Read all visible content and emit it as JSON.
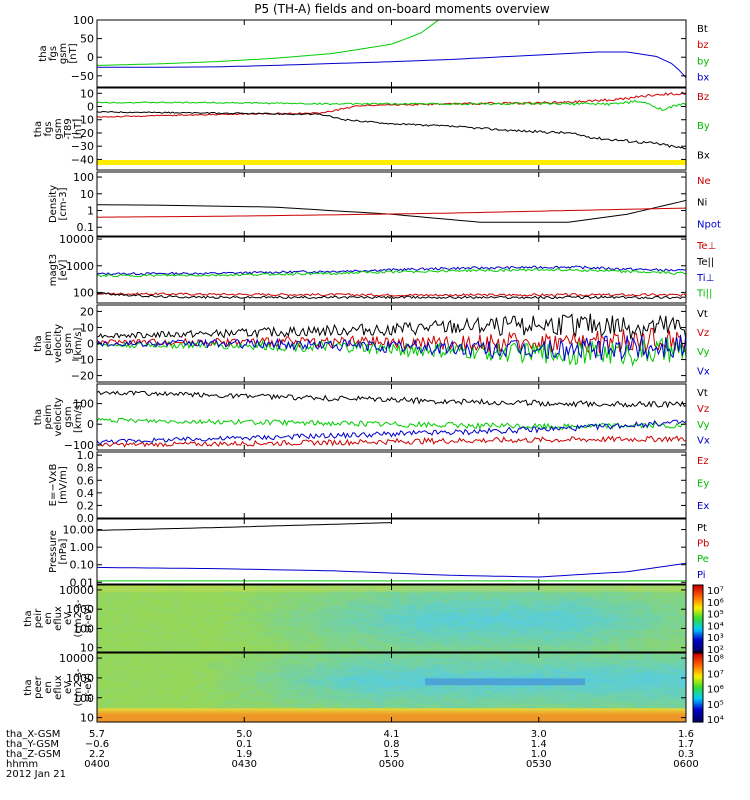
{
  "title": "P5 (TH-A) fields and on-board moments overview",
  "chart_data": {
    "type": "line",
    "title": "P5 (TH-A) fields and on-board moments overview",
    "x": {
      "start": "0400",
      "end": "0600",
      "ticks": [
        "0400",
        "0430",
        "0500",
        "0530",
        "0600"
      ]
    },
    "panels": [
      {
        "id": "fgs",
        "ylabel": [
          "tha",
          "fgs",
          "gsm",
          "[nT]"
        ],
        "yticks": [
          "100",
          "50",
          "0",
          "−50"
        ],
        "ylim": [
          -80,
          100
        ],
        "scale": "linear",
        "legend": [
          {
            "text": "Bt",
            "color": "#000000"
          },
          {
            "text": "bz",
            "color": "#cc0000"
          },
          {
            "text": "by",
            "color": "#00bb00"
          },
          {
            "text": "bx",
            "color": "#0000cc"
          }
        ],
        "series": [
          {
            "name": "by",
            "color": "#00cc00",
            "x": [
              0,
              0.1,
              0.2,
              0.3,
              0.4,
              0.5,
              0.55,
              0.58
            ],
            "y": [
              -22,
              -18,
              -12,
              -3,
              10,
              35,
              65,
              100
            ]
          },
          {
            "name": "bx",
            "color": "#0000cc",
            "x": [
              0,
              0.1,
              0.2,
              0.3,
              0.4,
              0.5,
              0.6,
              0.7,
              0.8,
              0.85,
              0.9,
              0.95,
              0.98,
              1
            ],
            "y": [
              -27,
              -27,
              -26,
              -22,
              -17,
              -12,
              -6,
              2,
              10,
              14,
              14,
              2,
              -20,
              -55
            ]
          }
        ]
      },
      {
        "id": "fgs_zoom",
        "ylabel": [
          "tha",
          "fgs",
          "gsm",
          "-T89",
          "[nT]"
        ],
        "yticks": [
          "10",
          "0",
          "−10",
          "−20",
          "−30",
          "−40"
        ],
        "ylim": [
          -48,
          14
        ],
        "scale": "linear",
        "legend": [
          {
            "text": "Bz",
            "color": "#cc0000"
          },
          {
            "text": "By",
            "color": "#00bb00"
          },
          {
            "text": "Bx",
            "color": "#000000"
          }
        ],
        "series": [
          {
            "name": "Bz",
            "color": "#cc0000",
            "x": [
              0,
              0.2,
              0.38,
              0.45,
              0.6,
              0.8,
              0.9,
              0.95,
              1
            ],
            "y": [
              -8,
              -6,
              -5,
              1,
              2,
              3,
              6,
              9,
              10
            ]
          },
          {
            "name": "By",
            "color": "#00cc00",
            "x": [
              0,
              0.2,
              0.4,
              0.6,
              0.8,
              0.88,
              0.92,
              0.96,
              1
            ],
            "y": [
              3,
              3,
              2,
              2,
              2,
              2,
              4,
              -2,
              2
            ]
          },
          {
            "name": "Bx",
            "color": "#000000",
            "x": [
              0,
              0.2,
              0.38,
              0.42,
              0.5,
              0.6,
              0.7,
              0.8,
              0.85,
              0.9,
              0.95,
              1
            ],
            "y": [
              -4,
              -5,
              -6,
              -10,
              -13,
              -15,
              -18,
              -20,
              -24,
              -26,
              -28,
              -32
            ]
          }
        ]
      },
      {
        "id": "density",
        "ylabel": [
          "Density",
          "[cm-3]"
        ],
        "yticks": [
          "100",
          "10",
          "1",
          "0.1"
        ],
        "ylim": [
          0.03,
          200
        ],
        "scale": "log",
        "legend": [
          {
            "text": "Ne",
            "color": "#cc0000"
          },
          {
            "text": "Ni",
            "color": "#000000"
          },
          {
            "text": "Npot",
            "color": "#0000cc"
          }
        ],
        "series": [
          {
            "name": "Ni",
            "color": "#000000",
            "x": [
              0,
              0.1,
              0.3,
              0.5,
              0.65,
              0.8,
              0.9,
              1
            ],
            "y": [
              2.2,
              2.1,
              1.6,
              0.6,
              0.2,
              0.2,
              0.6,
              4
            ]
          },
          {
            "name": "Ne",
            "color": "#cc0000",
            "x": [
              0,
              0.2,
              0.4,
              0.6,
              0.8,
              1
            ],
            "y": [
              0.4,
              0.45,
              0.55,
              0.7,
              1.0,
              1.4
            ]
          }
        ]
      },
      {
        "id": "temperature",
        "ylabel": [
          "magt3",
          "[eV]"
        ],
        "yticks": [
          "10000",
          "1000",
          "100"
        ],
        "ylim": [
          40,
          12000
        ],
        "scale": "log",
        "legend": [
          {
            "text": "Te⊥",
            "color": "#cc0000"
          },
          {
            "text": "Te||",
            "color": "#000000"
          },
          {
            "text": "Ti⊥",
            "color": "#0000cc"
          },
          {
            "text": "Ti||",
            "color": "#00bb00"
          }
        ],
        "series": [
          {
            "name": "Ti⊥",
            "color": "#0000cc",
            "x": [
              0,
              0.2,
              0.4,
              0.6,
              0.8,
              0.9,
              1
            ],
            "y": [
              500,
              520,
              620,
              800,
              900,
              750,
              650
            ]
          },
          {
            "name": "Ti||",
            "color": "#00cc00",
            "x": [
              0,
              0.2,
              0.4,
              0.6,
              0.8,
              0.9,
              1
            ],
            "y": [
              420,
              440,
              520,
              650,
              720,
              600,
              520
            ]
          },
          {
            "name": "Te⊥",
            "color": "#cc0000",
            "x": [
              0,
              0.2,
              0.5,
              0.8,
              1
            ],
            "y": [
              90,
              85,
              80,
              80,
              80
            ]
          },
          {
            "name": "Te||",
            "color": "#000000",
            "x": [
              0,
              0.05,
              0.1,
              0.2,
              0.5,
              0.8,
              1
            ],
            "y": [
              95,
              80,
              70,
              65,
              65,
              65,
              65
            ]
          }
        ]
      },
      {
        "id": "velocity_zoom",
        "ylabel": [
          "tha",
          "peim",
          "velocity",
          "gsm",
          "[km/s]"
        ],
        "yticks": [
          "20",
          "10",
          "0",
          "−10",
          "−20"
        ],
        "ylim": [
          -24,
          24
        ],
        "scale": "linear",
        "legend": [
          {
            "text": "Vt",
            "color": "#000000"
          },
          {
            "text": "Vz",
            "color": "#cc0000"
          },
          {
            "text": "Vy",
            "color": "#00bb00"
          },
          {
            "text": "Vx",
            "color": "#0000cc"
          }
        ],
        "series": [
          {
            "name": "Vt",
            "color": "#000000",
            "x": [
              0,
              0.2,
              0.4,
              0.6,
              0.8,
              1
            ],
            "y": [
              5,
              6,
              8,
              10,
              12,
              9
            ]
          },
          {
            "name": "Vz",
            "color": "#cc0000",
            "x": [
              0,
              0.2,
              0.4,
              0.6,
              0.8,
              1
            ],
            "y": [
              1,
              1,
              1,
              0,
              1,
              2
            ]
          },
          {
            "name": "Vy",
            "color": "#00cc00",
            "x": [
              0,
              0.2,
              0.4,
              0.6,
              0.8,
              1
            ],
            "y": [
              -1,
              -1,
              -2,
              -5,
              -6,
              -5
            ]
          },
          {
            "name": "Vx",
            "color": "#0000cc",
            "x": [
              0,
              0.2,
              0.4,
              0.6,
              0.8,
              1
            ],
            "y": [
              0,
              0,
              -1,
              -3,
              -4,
              -1
            ]
          }
        ]
      },
      {
        "id": "velocity",
        "ylabel": [
          "tha",
          "peim",
          "velocity",
          "gsm",
          "[km/s]"
        ],
        "yticks": [
          "100",
          "0",
          "−100"
        ],
        "ylim": [
          -125,
          195
        ],
        "scale": "linear",
        "legend": [
          {
            "text": "Vt",
            "color": "#000000"
          },
          {
            "text": "Vz",
            "color": "#cc0000"
          },
          {
            "text": "Vy",
            "color": "#00bb00"
          },
          {
            "text": "Vx",
            "color": "#0000cc"
          }
        ],
        "series": [
          {
            "name": "Vt",
            "color": "#000000",
            "x": [
              0,
              0.2,
              0.4,
              0.6,
              0.8,
              1
            ],
            "y": [
              155,
              140,
              125,
              110,
              100,
              95
            ]
          },
          {
            "name": "Vy",
            "color": "#00cc00",
            "x": [
              0,
              0.2,
              0.4,
              0.6,
              0.8,
              0.9,
              1
            ],
            "y": [
              20,
              12,
              5,
              -5,
              -12,
              -5,
              -10
            ]
          },
          {
            "name": "Vx",
            "color": "#0000cc",
            "x": [
              0,
              0.2,
              0.4,
              0.6,
              0.8,
              0.9,
              1
            ],
            "y": [
              -85,
              -70,
              -55,
              -40,
              -20,
              -5,
              10
            ]
          },
          {
            "name": "Vz",
            "color": "#cc0000",
            "x": [
              0,
              0.2,
              0.4,
              0.6,
              0.8,
              1
            ],
            "y": [
              -100,
              -95,
              -88,
              -80,
              -75,
              -70
            ]
          }
        ]
      },
      {
        "id": "efield",
        "ylabel": [
          "E=−VxB",
          "[mV/m]"
        ],
        "yticks": [
          "1.0",
          "0.8",
          "0.6",
          "0.4",
          "0.2",
          "0.0"
        ],
        "ylim": [
          0,
          1.05
        ],
        "scale": "linear",
        "legend": [
          {
            "text": "Ez",
            "color": "#cc0000"
          },
          {
            "text": "Ey",
            "color": "#00bb00"
          },
          {
            "text": "Ex",
            "color": "#0000cc"
          }
        ],
        "series": []
      },
      {
        "id": "pressure",
        "ylabel": [
          "Pressure",
          "[nPa]"
        ],
        "yticks": [
          "10.00",
          "1.00",
          "0.10",
          "0.01"
        ],
        "ylim": [
          0.008,
          40
        ],
        "scale": "log",
        "legend": [
          {
            "text": "Pt",
            "color": "#000000"
          },
          {
            "text": "Pb",
            "color": "#cc0000"
          },
          {
            "text": "Pe",
            "color": "#00bb00"
          },
          {
            "text": "Pi",
            "color": "#0000cc"
          }
        ],
        "series": [
          {
            "name": "Pt",
            "color": "#000000",
            "x": [
              0,
              0.2,
              0.4,
              0.5
            ],
            "y": [
              9,
              13,
              20,
              25
            ]
          },
          {
            "name": "Pi",
            "color": "#0000cc",
            "x": [
              0,
              0.2,
              0.4,
              0.6,
              0.75,
              0.9,
              1
            ],
            "y": [
              0.07,
              0.06,
              0.045,
              0.025,
              0.02,
              0.04,
              0.12
            ]
          },
          {
            "name": "Pe",
            "color": "#00cc00",
            "x": [
              0,
              0.2,
              0.5,
              0.8,
              1
            ],
            "y": [
              0.012,
              0.012,
              0.012,
              0.012,
              0.012
            ]
          }
        ]
      },
      {
        "id": "peir",
        "type": "heatmap",
        "ylabel": [
          "tha",
          "peir",
          "en",
          "eflux",
          "eV",
          "(cm2-s-",
          "sr-eV)"
        ],
        "yticks": [
          "10000",
          "1000",
          "100",
          "10"
        ],
        "ylim": [
          6,
          18000
        ],
        "scale": "log",
        "colorbar": {
          "labels": [
            "10⁷",
            "10⁶",
            "10⁵",
            "10⁴",
            "10³",
            "10²"
          ]
        }
      },
      {
        "id": "peer",
        "type": "heatmap",
        "ylabel": [
          "tha",
          "peer",
          "en",
          "eflux",
          "eV",
          "(cm2-s-",
          "sr-eV)"
        ],
        "yticks": [
          "10000",
          "1000",
          "100",
          "10"
        ],
        "ylim": [
          6,
          18000
        ],
        "scale": "log",
        "colorbar": {
          "labels": [
            "10⁸",
            "10⁷",
            "10⁶",
            "10⁵",
            "10⁴"
          ]
        }
      }
    ],
    "ephemeris": [
      {
        "label": "tha_X-GSM",
        "values": [
          "5.7",
          "5.0",
          "4.1",
          "3.0",
          "1.6"
        ]
      },
      {
        "label": "tha_Y-GSM",
        "values": [
          "−0.6",
          "0.1",
          "0.8",
          "1.4",
          "1.7"
        ]
      },
      {
        "label": "tha_Z-GSM",
        "values": [
          "2.2",
          "1.9",
          "1.5",
          "1.0",
          "0.3"
        ]
      },
      {
        "label": "hhmm",
        "values": [
          "0400",
          "0430",
          "0500",
          "0530",
          "0600"
        ]
      }
    ],
    "date": "2012 Jan 21"
  }
}
